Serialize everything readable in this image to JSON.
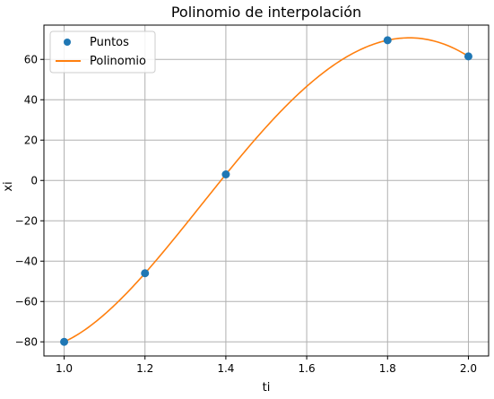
{
  "chart_data": {
    "type": "line",
    "title": "Polinomio de interpolación",
    "xlabel": "ti",
    "ylabel": "xi",
    "xlim": [
      0.95,
      2.05
    ],
    "ylim": [
      -87,
      77
    ],
    "xticks": [
      1.0,
      1.2,
      1.4,
      1.6,
      1.8,
      2.0
    ],
    "xtick_labels": [
      "1.0",
      "1.2",
      "1.4",
      "1.6",
      "1.8",
      "2.0"
    ],
    "yticks": [
      -80,
      -60,
      -40,
      -20,
      0,
      20,
      40,
      60
    ],
    "ytick_labels": [
      "−80",
      "−60",
      "−40",
      "−20",
      "0",
      "20",
      "40",
      "60"
    ],
    "grid": true,
    "legend_position": "upper-left",
    "series": [
      {
        "name": "Puntos",
        "kind": "scatter",
        "color": "#1f77b4",
        "x": [
          1.0,
          1.2,
          1.4,
          1.8,
          2.0
        ],
        "y": [
          -80,
          -46,
          3,
          69.5,
          61.5
        ]
      },
      {
        "name": "Polinomio",
        "kind": "line",
        "color": "#ff7f0e",
        "x": [
          1.0,
          1.2,
          1.4,
          1.8,
          2.0
        ],
        "y": [
          -80,
          -46,
          3,
          69.5,
          61.5
        ]
      }
    ]
  }
}
